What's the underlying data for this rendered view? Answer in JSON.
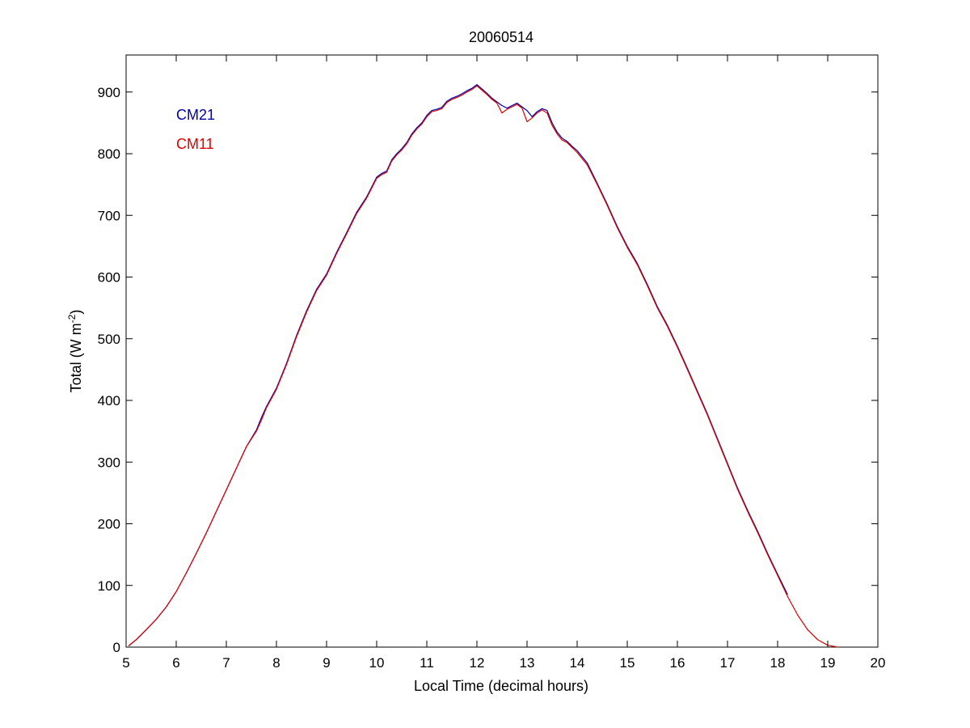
{
  "chart_data": {
    "type": "line",
    "title": "20060514",
    "xlabel": "Local Time (decimal hours)",
    "ylabel": "Total (W m",
    "ylabel_superscript": "-2",
    "ylabel_suffix": ")",
    "xlim": [
      5,
      20
    ],
    "ylim": [
      0,
      960
    ],
    "xticks": [
      5,
      6,
      7,
      8,
      9,
      10,
      11,
      12,
      13,
      14,
      15,
      16,
      17,
      18,
      19,
      20
    ],
    "yticks": [
      0,
      100,
      200,
      300,
      400,
      500,
      600,
      700,
      800,
      900
    ],
    "grid": false,
    "legend_position": "top-left",
    "series": [
      {
        "name": "CM21",
        "color": "#0000aa",
        "x": [
          5.05,
          5.2,
          5.4,
          5.6,
          5.8,
          6.0,
          6.2,
          6.4,
          6.6,
          6.8,
          7.0,
          7.2,
          7.4,
          7.6,
          7.7,
          7.8,
          8.0,
          8.2,
          8.4,
          8.6,
          8.8,
          9.0,
          9.2,
          9.4,
          9.6,
          9.8,
          10.0,
          10.1,
          10.2,
          10.3,
          10.4,
          10.5,
          10.6,
          10.7,
          10.8,
          10.9,
          11.0,
          11.1,
          11.2,
          11.3,
          11.4,
          11.5,
          11.6,
          11.7,
          11.8,
          11.9,
          12.0,
          12.1,
          12.2,
          12.3,
          12.4,
          12.5,
          12.6,
          12.7,
          12.8,
          12.9,
          13.0,
          13.1,
          13.2,
          13.3,
          13.4,
          13.5,
          13.6,
          13.7,
          13.8,
          13.9,
          14.0,
          14.2,
          14.4,
          14.6,
          14.8,
          15.0,
          15.2,
          15.4,
          15.6,
          15.8,
          16.0,
          16.2,
          16.4,
          16.6,
          16.8,
          17.0,
          17.2,
          17.4,
          17.6,
          17.8,
          18.0,
          18.2
        ],
        "y": [
          2,
          12,
          28,
          45,
          65,
          90,
          120,
          152,
          185,
          220,
          255,
          290,
          325,
          352,
          372,
          390,
          420,
          460,
          505,
          545,
          580,
          605,
          640,
          672,
          705,
          730,
          762,
          768,
          772,
          790,
          800,
          808,
          818,
          832,
          842,
          850,
          862,
          870,
          872,
          875,
          885,
          890,
          893,
          897,
          902,
          906,
          912,
          905,
          898,
          890,
          884,
          878,
          874,
          878,
          882,
          876,
          870,
          860,
          868,
          873,
          870,
          850,
          835,
          825,
          820,
          812,
          805,
          785,
          752,
          718,
          682,
          650,
          622,
          588,
          552,
          522,
          488,
          452,
          415,
          378,
          338,
          298,
          258,
          222,
          188,
          152,
          118,
          85
        ]
      },
      {
        "name": "CM11",
        "color": "#dd0000",
        "x": [
          5.05,
          5.2,
          5.4,
          5.6,
          5.8,
          6.0,
          6.2,
          6.4,
          6.6,
          6.8,
          7.0,
          7.2,
          7.4,
          7.6,
          7.7,
          7.8,
          8.0,
          8.2,
          8.4,
          8.6,
          8.8,
          9.0,
          9.2,
          9.4,
          9.6,
          9.8,
          10.0,
          10.1,
          10.2,
          10.3,
          10.4,
          10.5,
          10.6,
          10.7,
          10.8,
          10.9,
          11.0,
          11.1,
          11.2,
          11.3,
          11.4,
          11.5,
          11.6,
          11.7,
          11.8,
          11.9,
          12.0,
          12.1,
          12.2,
          12.3,
          12.4,
          12.5,
          12.6,
          12.7,
          12.8,
          12.9,
          13.0,
          13.1,
          13.2,
          13.3,
          13.4,
          13.5,
          13.6,
          13.7,
          13.8,
          13.9,
          14.0,
          14.2,
          14.4,
          14.6,
          14.8,
          15.0,
          15.2,
          15.4,
          15.6,
          15.8,
          16.0,
          16.2,
          16.4,
          16.6,
          16.8,
          17.0,
          17.2,
          17.4,
          17.6,
          17.8,
          18.0,
          18.2,
          18.4,
          18.6,
          18.8,
          19.0,
          19.2
        ],
        "y": [
          2,
          12,
          28,
          45,
          65,
          90,
          120,
          152,
          185,
          220,
          255,
          290,
          325,
          350,
          368,
          388,
          418,
          458,
          503,
          543,
          578,
          603,
          638,
          670,
          703,
          728,
          760,
          766,
          770,
          788,
          798,
          806,
          816,
          830,
          840,
          848,
          860,
          868,
          870,
          873,
          883,
          888,
          891,
          895,
          900,
          904,
          910,
          903,
          896,
          888,
          882,
          866,
          872,
          876,
          880,
          874,
          852,
          858,
          866,
          871,
          866,
          846,
          832,
          822,
          818,
          810,
          802,
          782,
          750,
          716,
          680,
          648,
          620,
          586,
          550,
          520,
          486,
          450,
          413,
          376,
          336,
          296,
          256,
          220,
          186,
          150,
          116,
          82,
          52,
          28,
          12,
          3,
          0
        ]
      }
    ]
  }
}
